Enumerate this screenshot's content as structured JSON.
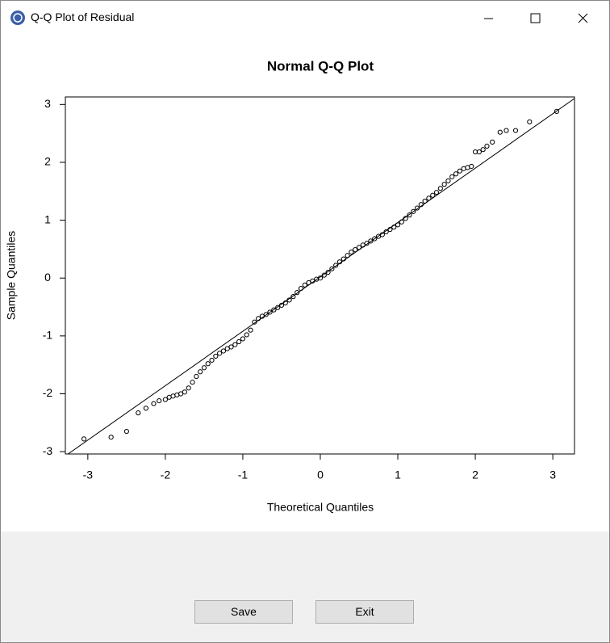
{
  "window": {
    "title": "Q-Q Plot of Residual"
  },
  "buttons": [
    "Save",
    "Exit"
  ],
  "chart_data": {
    "type": "scatter",
    "title": "Normal Q-Q Plot",
    "x_label": "Theoretical Quantiles",
    "y_label": "Sample Quantiles",
    "xlim": [
      -3.29,
      3.28
    ],
    "ylim": [
      -3.04,
      3.13
    ],
    "xticks": [
      -3,
      -2,
      -1,
      0,
      1,
      2,
      3
    ],
    "yticks": [
      -3,
      -2,
      -1,
      0,
      1,
      2,
      3
    ],
    "color": "#000000",
    "reference_line": {
      "intercept": 0.02,
      "slope": 0.94
    },
    "x": [
      -3.05,
      -2.7,
      -2.5,
      -2.35,
      -2.25,
      -2.15,
      -2.08,
      -2.0,
      -1.95,
      -1.9,
      -1.85,
      -1.8,
      -1.75,
      -1.7,
      -1.65,
      -1.6,
      -1.55,
      -1.5,
      -1.45,
      -1.4,
      -1.35,
      -1.3,
      -1.25,
      -1.2,
      -1.15,
      -1.1,
      -1.05,
      -1.0,
      -0.95,
      -0.9,
      -0.85,
      -0.8,
      -0.75,
      -0.7,
      -0.65,
      -0.6,
      -0.55,
      -0.5,
      -0.45,
      -0.4,
      -0.35,
      -0.3,
      -0.25,
      -0.2,
      -0.15,
      -0.1,
      -0.05,
      0.0,
      0.05,
      0.1,
      0.15,
      0.2,
      0.25,
      0.3,
      0.35,
      0.4,
      0.45,
      0.5,
      0.55,
      0.6,
      0.65,
      0.7,
      0.75,
      0.8,
      0.85,
      0.9,
      0.95,
      1.0,
      1.05,
      1.1,
      1.15,
      1.2,
      1.25,
      1.3,
      1.35,
      1.4,
      1.45,
      1.5,
      1.55,
      1.6,
      1.65,
      1.7,
      1.75,
      1.8,
      1.85,
      1.9,
      1.95,
      2.0,
      2.05,
      2.1,
      2.15,
      2.22,
      2.32,
      2.4,
      2.52,
      2.7,
      3.05
    ],
    "values": [
      -2.78,
      -2.75,
      -2.65,
      -2.33,
      -2.25,
      -2.17,
      -2.12,
      -2.1,
      -2.06,
      -2.04,
      -2.02,
      -2.0,
      -1.97,
      -1.9,
      -1.8,
      -1.7,
      -1.62,
      -1.55,
      -1.48,
      -1.42,
      -1.35,
      -1.3,
      -1.26,
      -1.22,
      -1.19,
      -1.15,
      -1.1,
      -1.05,
      -0.98,
      -0.9,
      -0.76,
      -0.7,
      -0.66,
      -0.63,
      -0.59,
      -0.55,
      -0.51,
      -0.47,
      -0.43,
      -0.38,
      -0.32,
      -0.25,
      -0.18,
      -0.12,
      -0.08,
      -0.05,
      -0.02,
      0.0,
      0.05,
      0.1,
      0.16,
      0.22,
      0.28,
      0.33,
      0.39,
      0.45,
      0.49,
      0.53,
      0.57,
      0.6,
      0.64,
      0.68,
      0.72,
      0.75,
      0.8,
      0.84,
      0.88,
      0.92,
      0.97,
      1.03,
      1.09,
      1.15,
      1.21,
      1.27,
      1.33,
      1.38,
      1.43,
      1.48,
      1.55,
      1.62,
      1.68,
      1.75,
      1.8,
      1.85,
      1.89,
      1.91,
      1.93,
      2.18,
      2.18,
      2.22,
      2.28,
      2.35,
      2.52,
      2.55,
      2.55,
      2.7,
      2.88
    ]
  }
}
